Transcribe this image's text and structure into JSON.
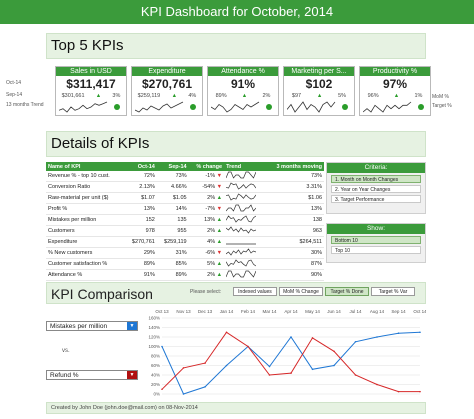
{
  "title": "KPI Dashboard for October, 2014",
  "top5": {
    "heading": "Top 5 KPIs",
    "row_labels": [
      "Oct-14",
      "Sep-14",
      "13 months Trend"
    ],
    "right_labels": [
      "MoM %",
      "Target %"
    ],
    "cards": [
      {
        "name": "Sales in USD",
        "value": "$311,417",
        "prev": "$301,661",
        "mom": "3%",
        "trend": [
          5,
          6,
          4,
          7,
          5,
          6,
          8,
          6,
          7,
          9,
          8,
          9,
          10
        ]
      },
      {
        "name": "Expenditure",
        "value": "$270,761",
        "prev": "$259,119",
        "mom": "4%",
        "trend": [
          6,
          5,
          7,
          6,
          8,
          7,
          6,
          8,
          9,
          7,
          8,
          9,
          10
        ]
      },
      {
        "name": "Attendance %",
        "value": "91%",
        "prev": "89%",
        "mom": "2%",
        "trend": [
          8,
          7,
          9,
          8,
          6,
          7,
          9,
          8,
          7,
          9,
          8,
          9,
          10
        ]
      },
      {
        "name": "Marketing per S...",
        "value": "$102",
        "prev": "$97",
        "mom": "5%",
        "trend": [
          6,
          8,
          5,
          7,
          9,
          6,
          8,
          7,
          5,
          8,
          9,
          7,
          9
        ]
      },
      {
        "name": "Productivity %",
        "value": "97%",
        "prev": "96%",
        "mom": "1%",
        "trend": [
          7,
          8,
          7,
          9,
          8,
          7,
          9,
          8,
          9,
          8,
          9,
          9,
          10
        ]
      }
    ]
  },
  "details": {
    "heading": "Details of KPIs",
    "columns": [
      "Name of KPI",
      "Oct-14",
      "Sep-14",
      "% change",
      "Trend",
      "3 months moving"
    ],
    "rows": [
      {
        "name": "Revenue % - top 10 cust.",
        "oct": "72%",
        "sep": "73%",
        "chg": "-1%",
        "dir": "down",
        "mov": "73%"
      },
      {
        "name": "Conversion Ratio",
        "oct": "2.13%",
        "sep": "4.66%",
        "chg": "-54%",
        "dir": "down",
        "mov": "3.31%"
      },
      {
        "name": "Raw-material per unit ($)",
        "oct": "$1.07",
        "sep": "$1.05",
        "chg": "2%",
        "dir": "up",
        "mov": "$1.06"
      },
      {
        "name": "Profit %",
        "oct": "13%",
        "sep": "14%",
        "chg": "-7%",
        "dir": "down",
        "mov": "13%"
      },
      {
        "name": "Mistakes per million",
        "oct": "152",
        "sep": "135",
        "chg": "13%",
        "dir": "up",
        "mov": "138"
      },
      {
        "name": "Customers",
        "oct": "978",
        "sep": "955",
        "chg": "2%",
        "dir": "up",
        "mov": "963"
      },
      {
        "name": "Expenditure",
        "oct": "$270,761",
        "sep": "$259,119",
        "chg": "4%",
        "dir": "up",
        "mov": "$264,511"
      },
      {
        "name": "% New customers",
        "oct": "29%",
        "sep": "31%",
        "chg": "-6%",
        "dir": "down",
        "mov": "30%"
      },
      {
        "name": "Customer satisfaction %",
        "oct": "89%",
        "sep": "85%",
        "chg": "5%",
        "dir": "up",
        "mov": "87%"
      },
      {
        "name": "Attendance %",
        "oct": "91%",
        "sep": "89%",
        "chg": "2%",
        "dir": "up",
        "mov": "90%"
      }
    ],
    "criteria": {
      "heading": "Criteria:",
      "options": [
        "1. Month on Month Changes",
        "2. Year on Year Changes",
        "3. Target Performance"
      ]
    },
    "show": {
      "heading": "Show:",
      "options": [
        "Bottom 10",
        "Top 10"
      ]
    }
  },
  "comparison": {
    "heading": "KPI Comparison",
    "please_select": "Please select:",
    "buttons": [
      "Indexed values",
      "MoM % Change",
      "Target % Done",
      "Target % Var"
    ],
    "selected_button": "Target % Done",
    "kpi1": "Mistakes per million",
    "vs": "vs.",
    "kpi2": "Refund %",
    "colors": {
      "kpi1": "#1f77d4",
      "kpi2": "#d62728"
    }
  },
  "chart_data": {
    "type": "line",
    "categories": [
      "Oct 13",
      "Nov 13",
      "Dec 13",
      "Jan 14",
      "Feb 14",
      "Mar 14",
      "Apr 14",
      "May 14",
      "Jun 14",
      "Jul 14",
      "Aug 14",
      "Sep 14",
      "Oct 14"
    ],
    "series": [
      {
        "name": "Mistakes per million",
        "values": [
          100,
          0,
          15,
          60,
          100,
          58,
          120,
          52,
          60,
          110,
          120,
          128,
          130
        ]
      },
      {
        "name": "Refund %",
        "values": [
          10,
          55,
          65,
          130,
          100,
          40,
          44,
          118,
          90,
          40,
          20,
          5,
          5
        ]
      }
    ],
    "ylim": [
      0,
      160
    ],
    "yticks": [
      "0%",
      "20%",
      "40%",
      "60%",
      "80%",
      "100%",
      "120%",
      "140%",
      "160%"
    ]
  },
  "footer": "Created by John Doe (john.doe@mail.com) on 08-Nov-2014"
}
